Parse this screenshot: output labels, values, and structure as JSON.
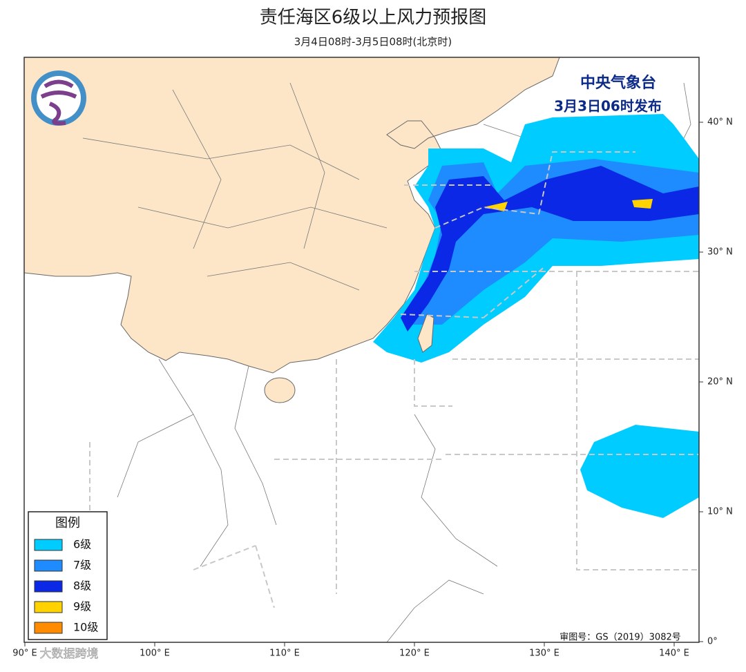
{
  "header": {
    "title": "责任海区6级以上风力预报图",
    "subtitle": "3月4日08时-3月5日08时(北京时)"
  },
  "issuer": {
    "name": "中央气象台",
    "issued": "3月3日06时发布"
  },
  "legend": {
    "title": "图例",
    "items": [
      {
        "label": "6级",
        "color": "#00ccff"
      },
      {
        "label": "7级",
        "color": "#1e8cff"
      },
      {
        "label": "8级",
        "color": "#0a28e6"
      },
      {
        "label": "9级",
        "color": "#ffd200"
      },
      {
        "label": "10级",
        "color": "#ff8c00"
      }
    ]
  },
  "map": {
    "longitude_labels": [
      "90° E",
      "100° E",
      "110° E",
      "120° E",
      "130° E",
      "140° E"
    ],
    "latitude_labels": [
      "40° N",
      "30° N",
      "20° N",
      "10° N",
      "0°"
    ]
  },
  "footer": {
    "approval": "审图号：GS（2019）3082号",
    "watermark": "大数据跨境"
  }
}
